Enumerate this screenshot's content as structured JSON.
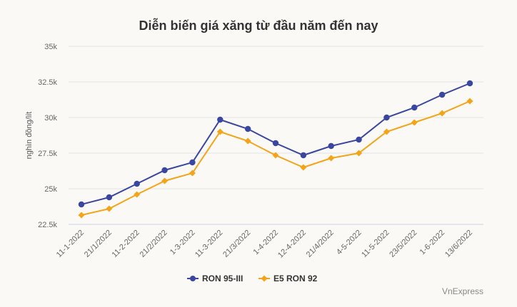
{
  "chart_data": {
    "type": "line",
    "title": "Diễn biến giá xăng từ đầu năm đến nay",
    "xlabel": "",
    "ylabel": "nghìn đồng/lít",
    "ylim": [
      22.5,
      35
    ],
    "yticks": [
      22.5,
      25,
      27.5,
      30,
      32.5,
      35
    ],
    "ytick_labels": [
      "22.5k",
      "25k",
      "27.5k",
      "30k",
      "32.5k",
      "35k"
    ],
    "grid": true,
    "legend_position": "bottom",
    "categories": [
      "11-1-2022",
      "21/1/2022",
      "11-2-2022",
      "21/2/2022",
      "1-3-2022",
      "11-3-2022",
      "21/3/2022",
      "1-4-2022",
      "12-4-2022",
      "21/4/2022",
      "4-5-2022",
      "11-5-2022",
      "23/5/2022",
      "1-6-2022",
      "13/6/2022"
    ],
    "series": [
      {
        "name": "RON 95-III",
        "color": "#3a47a0",
        "marker": "circle",
        "values": [
          23.9,
          24.4,
          25.35,
          26.3,
          26.85,
          29.85,
          29.2,
          28.2,
          27.35,
          28.0,
          28.45,
          30.0,
          30.7,
          31.6,
          32.4
        ]
      },
      {
        "name": "E5 RON 92",
        "color": "#f4a419",
        "marker": "diamond",
        "values": [
          23.15,
          23.6,
          24.6,
          25.55,
          26.1,
          29.0,
          28.35,
          27.35,
          26.5,
          27.15,
          27.5,
          29.0,
          29.65,
          30.3,
          31.15
        ]
      }
    ]
  },
  "credit": "VnExpress"
}
